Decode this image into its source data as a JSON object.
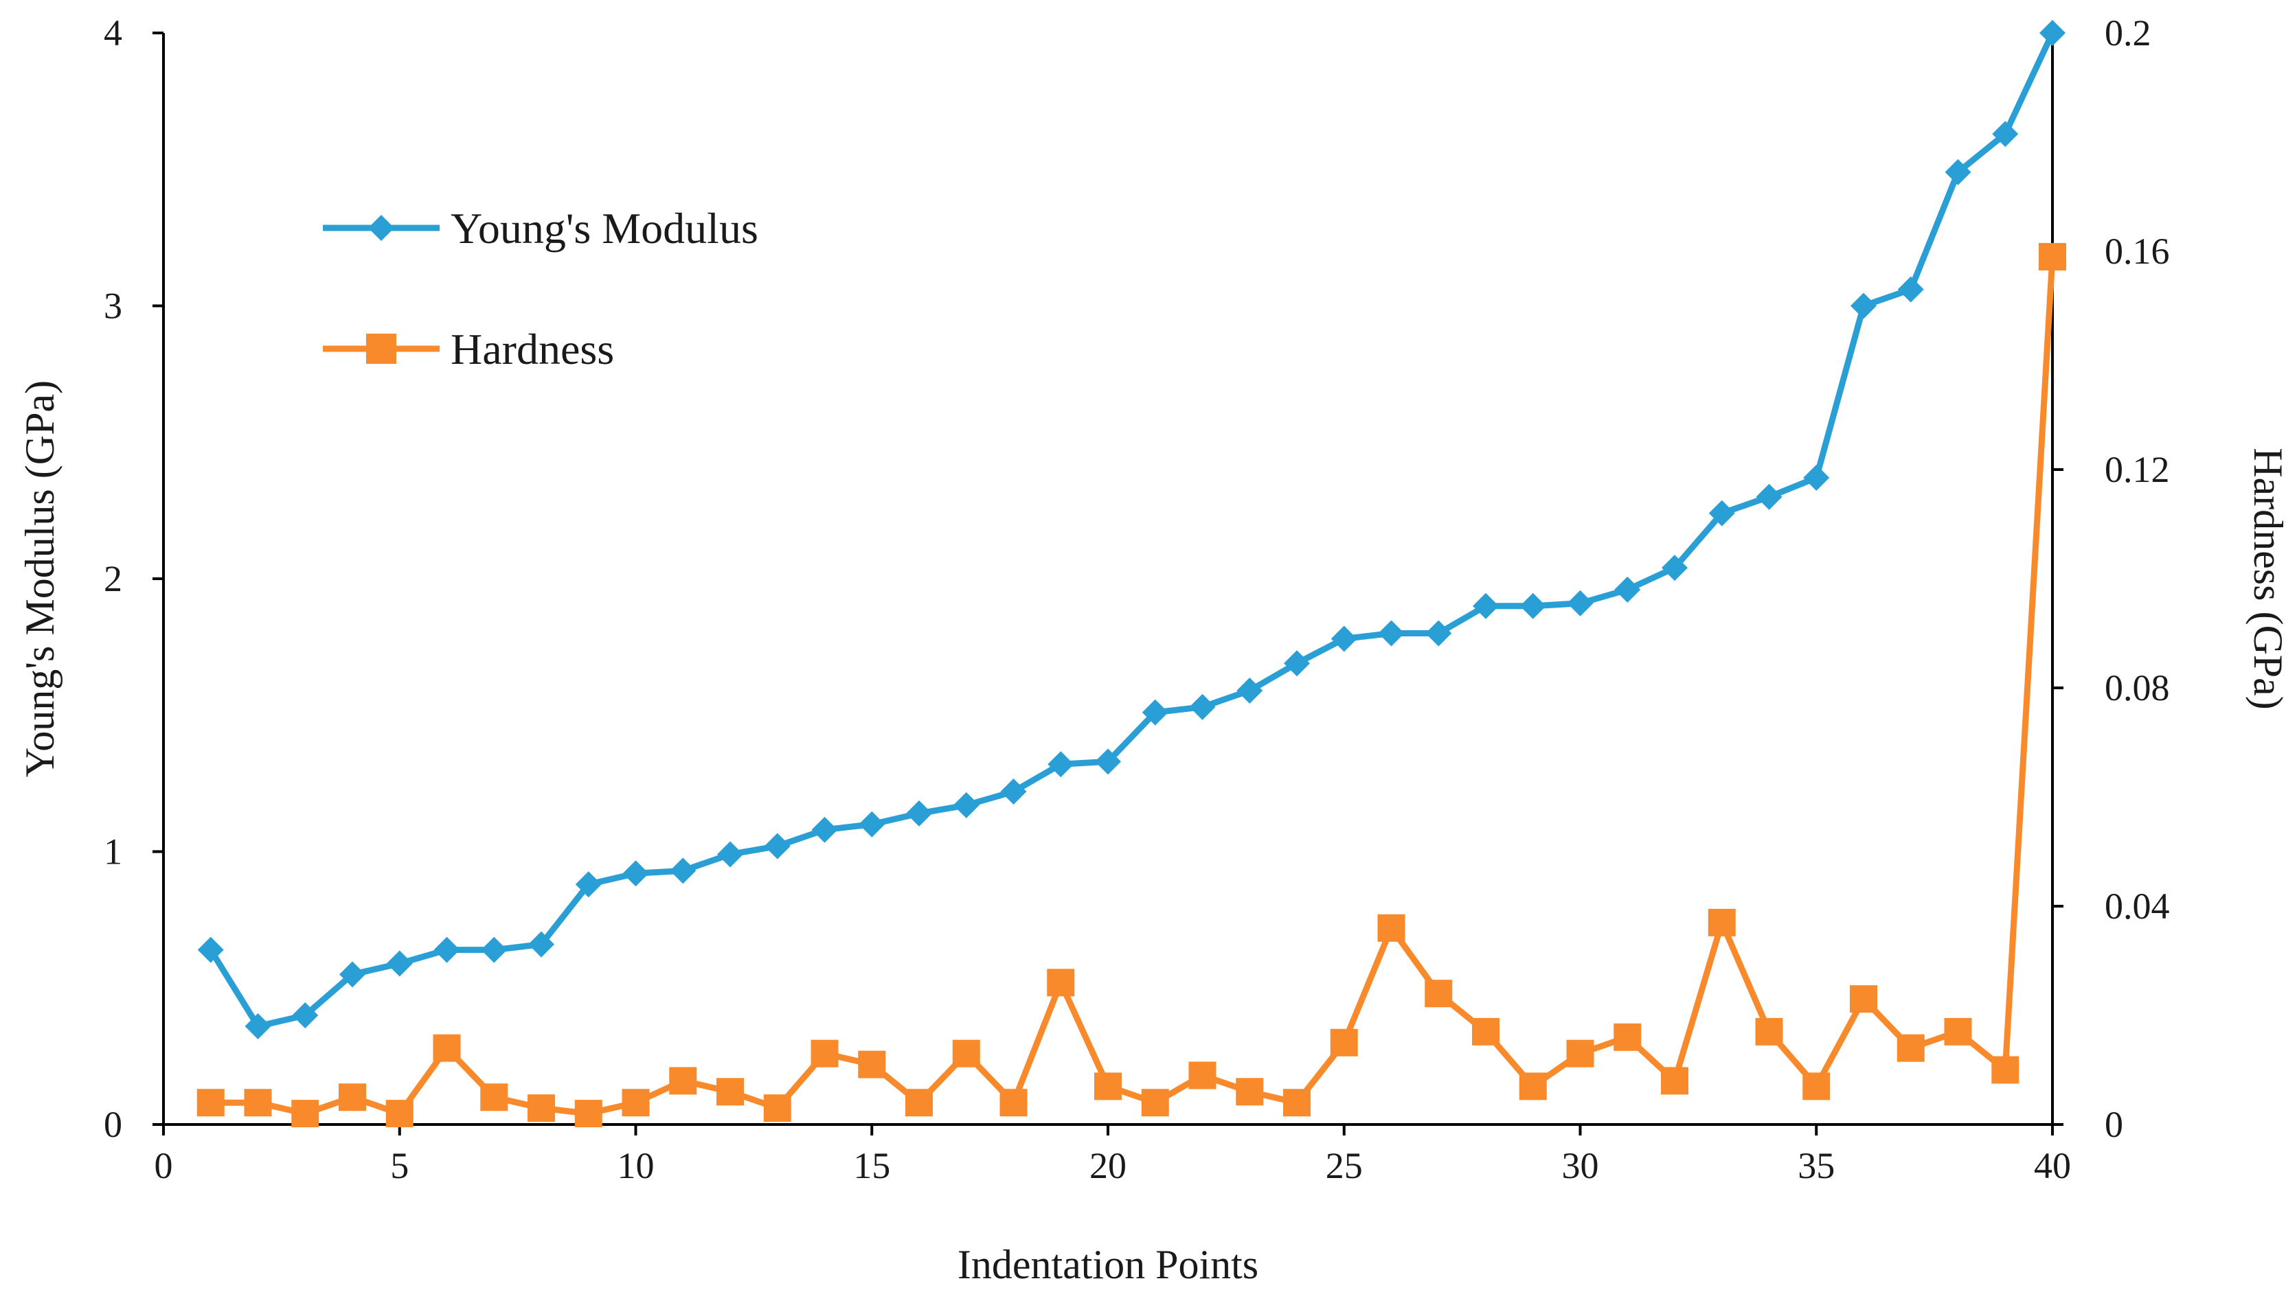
{
  "chart_data": {
    "type": "line",
    "title": "",
    "xlabel": "Indentation Points",
    "ylabel": "Young's Modulus (GPa)",
    "y2label": "Hardness (GPa)",
    "xlim": [
      0,
      40
    ],
    "ylim": [
      0,
      4
    ],
    "y2lim": [
      0,
      0.2
    ],
    "xticks": [
      "0",
      "5",
      "10",
      "15",
      "20",
      "25",
      "30",
      "35",
      "40"
    ],
    "yticks": [
      "0",
      "1",
      "2",
      "3",
      "4"
    ],
    "y2ticks": [
      "0",
      "0.04",
      "0.08",
      "0.12",
      "0.16",
      "0.2"
    ],
    "grid": false,
    "legend_position": "top-left",
    "series": [
      {
        "name": "Young's Modulus",
        "axis": "left",
        "color": "#2a9fd6",
        "marker": "diamond",
        "x": [
          1,
          2,
          3,
          4,
          5,
          6,
          7,
          8,
          9,
          10,
          11,
          12,
          13,
          14,
          15,
          16,
          17,
          18,
          19,
          20,
          21,
          22,
          23,
          24,
          25,
          26,
          27,
          28,
          29,
          30,
          31,
          32,
          33,
          34,
          35,
          36,
          37,
          38,
          39,
          40
        ],
        "values": [
          0.64,
          0.36,
          0.4,
          0.55,
          0.59,
          0.64,
          0.64,
          0.66,
          0.88,
          0.92,
          0.93,
          0.99,
          1.02,
          1.08,
          1.1,
          1.14,
          1.17,
          1.22,
          1.32,
          1.33,
          1.51,
          1.53,
          1.59,
          1.69,
          1.78,
          1.8,
          1.8,
          1.9,
          1.9,
          1.91,
          1.96,
          2.04,
          2.24,
          2.3,
          2.37,
          3.0,
          3.06,
          3.49,
          3.63,
          4.0
        ]
      },
      {
        "name": "Hardness",
        "axis": "right",
        "color": "#f98a2c",
        "marker": "square",
        "x": [
          1,
          2,
          3,
          4,
          5,
          6,
          7,
          8,
          9,
          10,
          11,
          12,
          13,
          14,
          15,
          16,
          17,
          18,
          19,
          20,
          21,
          22,
          23,
          24,
          25,
          26,
          27,
          28,
          29,
          30,
          31,
          32,
          33,
          34,
          35,
          36,
          37,
          38,
          39,
          40
        ],
        "values": [
          0.004,
          0.004,
          0.002,
          0.005,
          0.002,
          0.014,
          0.005,
          0.003,
          0.002,
          0.004,
          0.008,
          0.006,
          0.003,
          0.013,
          0.011,
          0.004,
          0.013,
          0.004,
          0.026,
          0.007,
          0.004,
          0.009,
          0.006,
          0.004,
          0.015,
          0.036,
          0.024,
          0.017,
          0.007,
          0.013,
          0.016,
          0.008,
          0.037,
          0.017,
          0.007,
          0.023,
          0.014,
          0.017,
          0.01,
          0.159
        ]
      }
    ]
  }
}
